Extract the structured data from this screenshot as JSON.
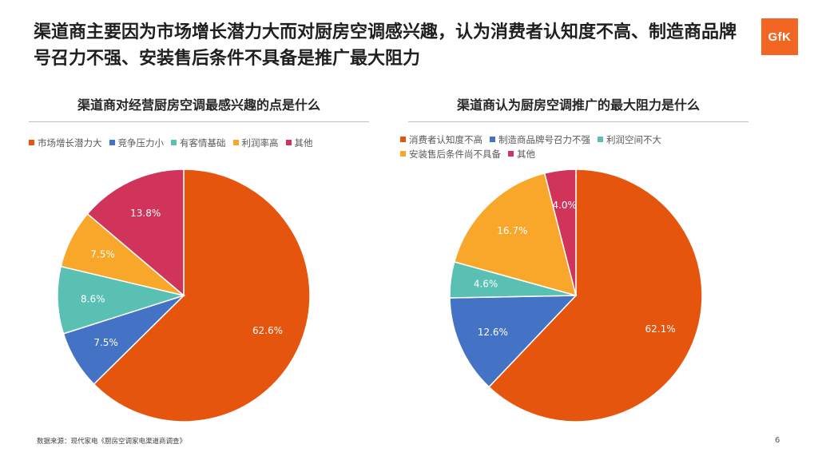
{
  "title": "渠道商主要因为市场增长潜力大而对厨房空调感兴趣，认为消费者认知度不高、制造商品牌号召力不强、安装售后条件不具备是推广最大阻力",
  "logo_text": "GfK",
  "source": "数据来源：现代家电《厨房空调家电渠道商调查》",
  "page_number": "6",
  "chart_data": [
    {
      "type": "pie",
      "title": "渠道商对经营厨房空调最感兴趣的点是什么",
      "legend_position": "top",
      "slices": [
        {
          "label": "市场增长潜力大",
          "value": 62.6,
          "value_label": "62.6%",
          "color": "#E6550D"
        },
        {
          "label": "竞争压力小",
          "value": 7.5,
          "value_label": "7.5%",
          "color": "#4472C4"
        },
        {
          "label": "有客情基础",
          "value": 8.6,
          "value_label": "8.6%",
          "color": "#5BC0B4"
        },
        {
          "label": "利润率高",
          "value": 7.5,
          "value_label": "7.5%",
          "color": "#F9A72B"
        },
        {
          "label": "其他",
          "value": 13.8,
          "value_label": "13.8%",
          "color": "#D1345B"
        }
      ]
    },
    {
      "type": "pie",
      "title": "渠道商认为厨房空调推广的最大阻力是什么",
      "legend_position": "top",
      "slices": [
        {
          "label": "消费者认知度不高",
          "value": 62.1,
          "value_label": "62.1%",
          "color": "#E6550D"
        },
        {
          "label": "制造商品牌号召力不强",
          "value": 12.6,
          "value_label": "12.6%",
          "color": "#4472C4"
        },
        {
          "label": "利润空间不大",
          "value": 4.6,
          "value_label": "4.6%",
          "color": "#5BC0B4"
        },
        {
          "label": "安装售后条件尚不具备",
          "value": 16.7,
          "value_label": "16.7%",
          "color": "#F9A72B"
        },
        {
          "label": "其他",
          "value": 4.0,
          "value_label": "4.0%",
          "color": "#D1345B"
        }
      ]
    }
  ]
}
